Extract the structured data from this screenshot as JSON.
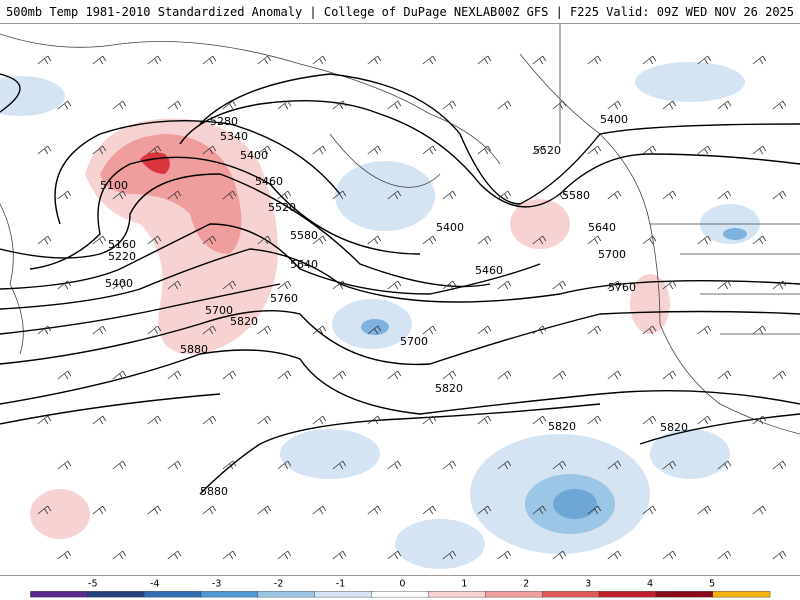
{
  "header": {
    "title_left": "500mb Temp 1981-2010 Standardized Anomaly | College of DuPage NEXLAB",
    "title_right": "00Z GFS | F225 Valid: 09Z WED NOV 26 2025"
  },
  "contour_labels": [
    "5280",
    "5340",
    "5400",
    "5460",
    "5520",
    "5580",
    "5640",
    "5700",
    "5760",
    "5820",
    "5880",
    "5100",
    "5160",
    "5220",
    "5400",
    "5520",
    "5580",
    "5640",
    "5700",
    "5760",
    "5820",
    "5880",
    "5400",
    "5460",
    "5700",
    "5820",
    "5820"
  ],
  "colorbar": {
    "ticks": [
      "-5",
      "-4",
      "-3",
      "-2",
      "-1",
      "0",
      "1",
      "2",
      "3",
      "4",
      "5"
    ],
    "colors": [
      "#5b2a8f",
      "#24407d",
      "#2f6db5",
      "#4f9ad6",
      "#9cc6e6",
      "#d4e4f2",
      "#ffffff",
      "#f6d2d2",
      "#ef9d9d",
      "#e25b5b",
      "#c21f2d",
      "#8b0a1a",
      "#f2b10b"
    ]
  }
}
